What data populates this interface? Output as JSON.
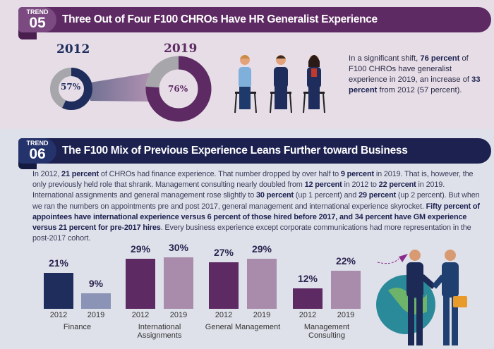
{
  "trend05": {
    "badge_label": "TREND",
    "badge_number": "05",
    "title": "Three Out of Four F100 CHROs Have HR Generalist Experience",
    "donuts": [
      {
        "year": "2012",
        "value": 57,
        "label": "57%",
        "color": "#1e2d5c"
      },
      {
        "year": "2019",
        "value": 76,
        "label": "76%",
        "color": "#5e2a63"
      }
    ],
    "text": [
      {
        "t": "In a significant shift, ",
        "b": false
      },
      {
        "t": "76 percent",
        "b": true
      },
      {
        "t": " of F100 CHROs have generalist experience in 2019, an increase of ",
        "b": false
      },
      {
        "t": "33 percent",
        "b": true
      },
      {
        "t": " from 2012 (57 percent).",
        "b": false
      }
    ]
  },
  "trend06": {
    "badge_label": "TREND",
    "badge_number": "06",
    "title": "The F100 Mix of Previous Experience Leans Further toward Business",
    "text": [
      {
        "t": "In 2012, ",
        "b": false
      },
      {
        "t": "21 percent",
        "b": true
      },
      {
        "t": " of CHROs had finance experience. That number dropped by over half to ",
        "b": false
      },
      {
        "t": "9 percent",
        "b": true
      },
      {
        "t": " in 2019. That is, however, the only previously held role that shrank. Management consulting nearly doubled from ",
        "b": false
      },
      {
        "t": "12 percent",
        "b": true
      },
      {
        "t": " in 2012 to ",
        "b": false
      },
      {
        "t": "22 percent",
        "b": true
      },
      {
        "t": " in 2019. International assignments and general management rose slightly to ",
        "b": false
      },
      {
        "t": "30 percent",
        "b": true
      },
      {
        "t": " (up 1 percent) and ",
        "b": false
      },
      {
        "t": "29 percent",
        "b": true
      },
      {
        "t": " (up 2 percent). But when we ran the numbers on appointments pre and post 2017, general management and international experience skyrocket. ",
        "b": false
      },
      {
        "t": "Fifty percent of appointees have international experience versus 6 percent of those hired before 2017, and 34 percent have GM experience versus 21 percent for pre-2017 hires",
        "b": true
      },
      {
        "t": ". Every business experience except corporate communications had more representation in the post-2017 cohort.",
        "b": false
      }
    ]
  },
  "chart_data": [
    {
      "type": "pie",
      "title": "HR Generalist Experience",
      "categories": [
        "2012",
        "2019"
      ],
      "values": [
        57,
        76
      ],
      "unit": "%"
    },
    {
      "type": "bar",
      "title": "Previous Experience",
      "categories": [
        "Finance",
        "International Assignments",
        "General Management",
        "Management Consulting"
      ],
      "series": [
        {
          "name": "2012",
          "values": [
            21,
            29,
            27,
            12
          ]
        },
        {
          "name": "2019",
          "values": [
            9,
            30,
            29,
            22
          ]
        }
      ],
      "colors": {
        "finance_2012": "#1e2d5c",
        "finance_2019": "#8b93b6",
        "other_2012": "#5e2a63",
        "other_2019": "#a98bab"
      },
      "ylim": [
        0,
        35
      ]
    }
  ]
}
